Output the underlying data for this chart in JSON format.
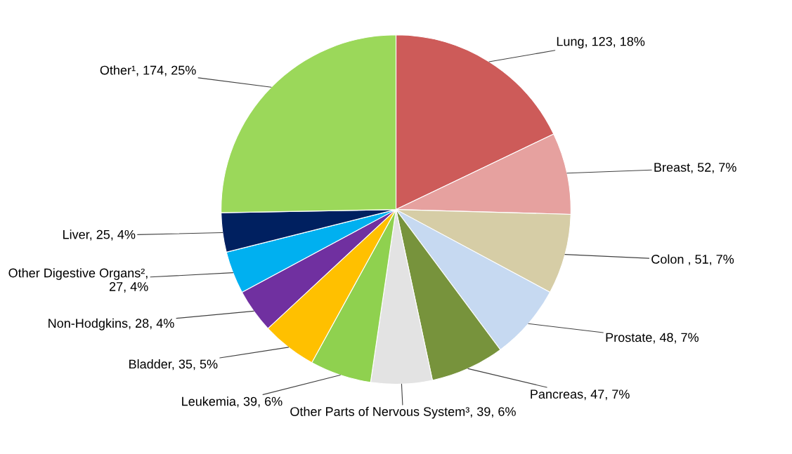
{
  "chart_data": {
    "type": "pie",
    "categories": [
      "Lung",
      "Breast",
      "Colon ",
      "Prostate",
      "Pancreas",
      "Other Parts of Nervous System³",
      "Leukemia",
      "Bladder",
      "Non-Hodgkins",
      "Other Digestive Organs²",
      "Liver",
      "Other¹"
    ],
    "values": [
      123,
      52,
      51,
      48,
      47,
      39,
      39,
      35,
      28,
      27,
      25,
      174
    ],
    "value_labels": [
      ", 123, 18%",
      ", 52, 7%",
      ", 51, 7%",
      ", 48, 7%",
      ", 47, 7%",
      ", 39, 6%",
      ", 39, 6%",
      ", 35, 5%",
      ", 28, 4%",
      ", 27, 4%",
      ", 25, 4%",
      ", 174, 25%"
    ],
    "colors": [
      "#cd5b59",
      "#e6a19f",
      "#d6cda6",
      "#c6d9f1",
      "#77933c",
      "#e3e3e3",
      "#8fd14f",
      "#ffc000",
      "#7030a0",
      "#00b0f0",
      "#002060",
      "#9bd85a"
    ]
  }
}
